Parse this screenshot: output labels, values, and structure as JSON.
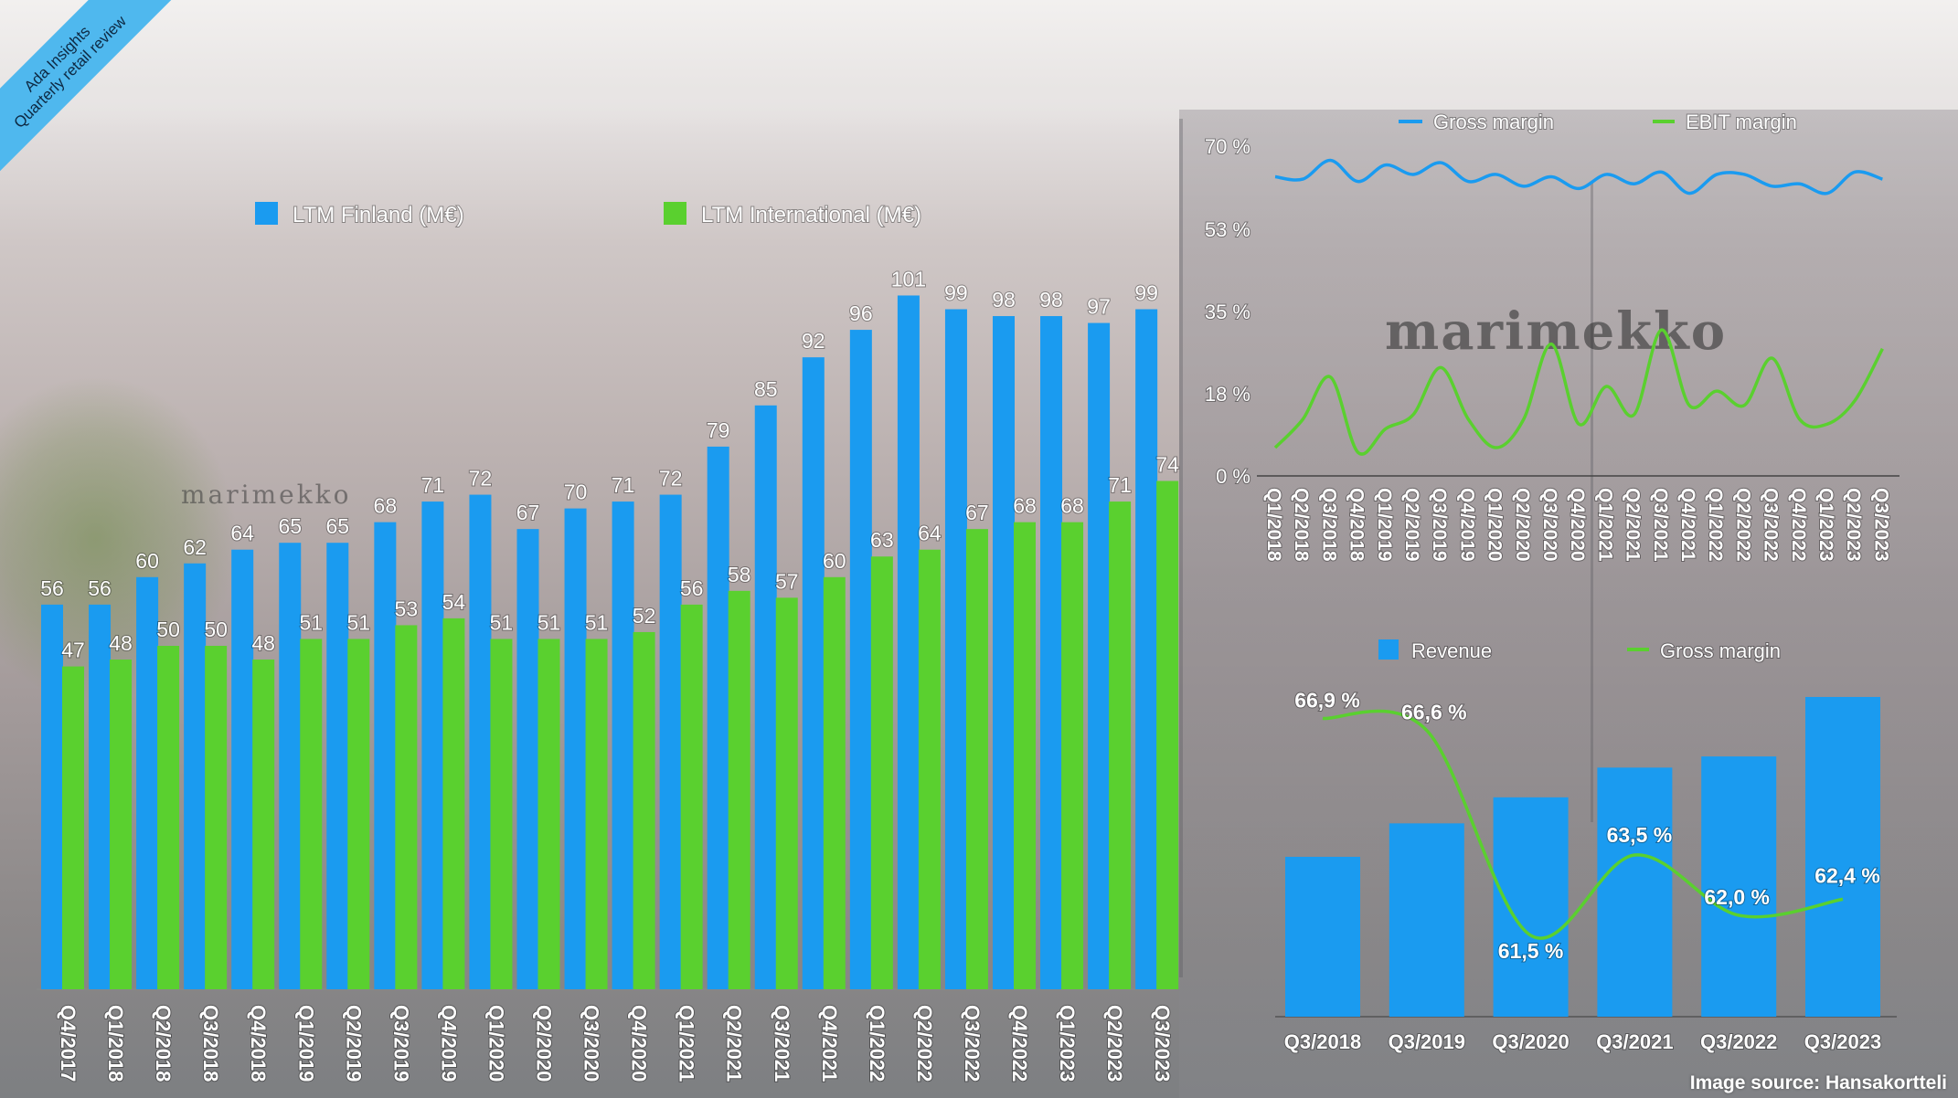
{
  "brand": {
    "line1": "Ada Insights",
    "line2": "Quarterly retail review"
  },
  "background": {
    "logo_text": "marimekko"
  },
  "credit": "Image source: Hansakortteli",
  "colors": {
    "blue": "#1a9bf0",
    "green": "#5ad02f",
    "ribbon": "#4fb8ee"
  },
  "chart_data": [
    {
      "type": "bar",
      "legend": [
        "LTM Finland (M€)",
        "LTM International (M€)"
      ],
      "categories": [
        "Q4/2017",
        "Q1/2018",
        "Q2/2018",
        "Q3/2018",
        "Q4/2018",
        "Q1/2019",
        "Q2/2019",
        "Q3/2019",
        "Q4/2019",
        "Q1/2020",
        "Q2/2020",
        "Q3/2020",
        "Q4/2020",
        "Q1/2021",
        "Q2/2021",
        "Q3/2021",
        "Q4/2021",
        "Q1/2022",
        "Q2/2022",
        "Q3/2022",
        "Q4/2022",
        "Q1/2023",
        "Q2/2023",
        "Q3/2023"
      ],
      "series": [
        {
          "name": "LTM Finland (M€)",
          "color": "#1a9bf0",
          "values": [
            56,
            56,
            60,
            62,
            64,
            65,
            65,
            68,
            71,
            72,
            67,
            70,
            71,
            72,
            79,
            85,
            92,
            96,
            101,
            99,
            98,
            98,
            97,
            99
          ]
        },
        {
          "name": "LTM International (M€)",
          "color": "#5ad02f",
          "values": [
            47,
            48,
            50,
            50,
            48,
            51,
            51,
            53,
            54,
            51,
            51,
            51,
            52,
            56,
            58,
            57,
            60,
            63,
            64,
            67,
            68,
            68,
            71,
            74
          ]
        }
      ],
      "ylim": [
        0,
        108
      ],
      "legend_position": "top"
    },
    {
      "type": "line",
      "legend": [
        "Gross margin",
        "EBIT margin"
      ],
      "x": [
        "Q1/2018",
        "Q2/2018",
        "Q3/2018",
        "Q4/2018",
        "Q1/2019",
        "Q2/2019",
        "Q3/2019",
        "Q4/2019",
        "Q1/2020",
        "Q2/2020",
        "Q3/2020",
        "Q4/2020",
        "Q1/2021",
        "Q2/2021",
        "Q3/2021",
        "Q4/2021",
        "Q1/2022",
        "Q2/2022",
        "Q3/2022",
        "Q4/2022",
        "Q1/2023",
        "Q2/2023",
        "Q3/2023"
      ],
      "y_ticks": [
        "70 %",
        "53 %",
        "35 %",
        "18 %",
        "0 %"
      ],
      "ylim": [
        0,
        70
      ],
      "series": [
        {
          "name": "Gross margin",
          "color": "#1a9bf0",
          "values": [
            63.5,
            63,
            67,
            62.5,
            66,
            64,
            66.5,
            62.5,
            64,
            61.5,
            63.5,
            61,
            64,
            62,
            64.5,
            60,
            64,
            64,
            61.5,
            62,
            60,
            64.5,
            63
          ]
        },
        {
          "name": "EBIT margin",
          "color": "#5ad02f",
          "values": [
            6,
            12,
            21,
            5,
            10,
            13,
            23,
            12,
            6,
            12,
            28,
            11,
            19,
            13,
            31,
            15,
            18,
            15,
            25,
            12,
            11,
            16,
            27
          ]
        }
      ],
      "legend_position": "top"
    },
    {
      "type": "bar",
      "legend": [
        "Revenue",
        "Gross margin"
      ],
      "categories": [
        "Q3/2018",
        "Q3/2019",
        "Q3/2020",
        "Q3/2021",
        "Q3/2022",
        "Q3/2023"
      ],
      "series": [
        {
          "name": "Revenue",
          "color": "#1a9bf0",
          "values": [
            43,
            52,
            59,
            67,
            70,
            86
          ]
        },
        {
          "name": "Gross margin",
          "color": "#5ad02f",
          "type": "line",
          "values": [
            66.9,
            66.6,
            61.5,
            63.5,
            62.0,
            62.4
          ],
          "labels": [
            "66,9 %",
            "66,6 %",
            "61,5 %",
            "63,5 %",
            "62,0 %",
            "62,4 %"
          ]
        }
      ],
      "revenue_ylim": [
        0,
        100
      ],
      "margin_ylim": [
        61,
        67.5
      ],
      "legend_position": "top"
    }
  ]
}
